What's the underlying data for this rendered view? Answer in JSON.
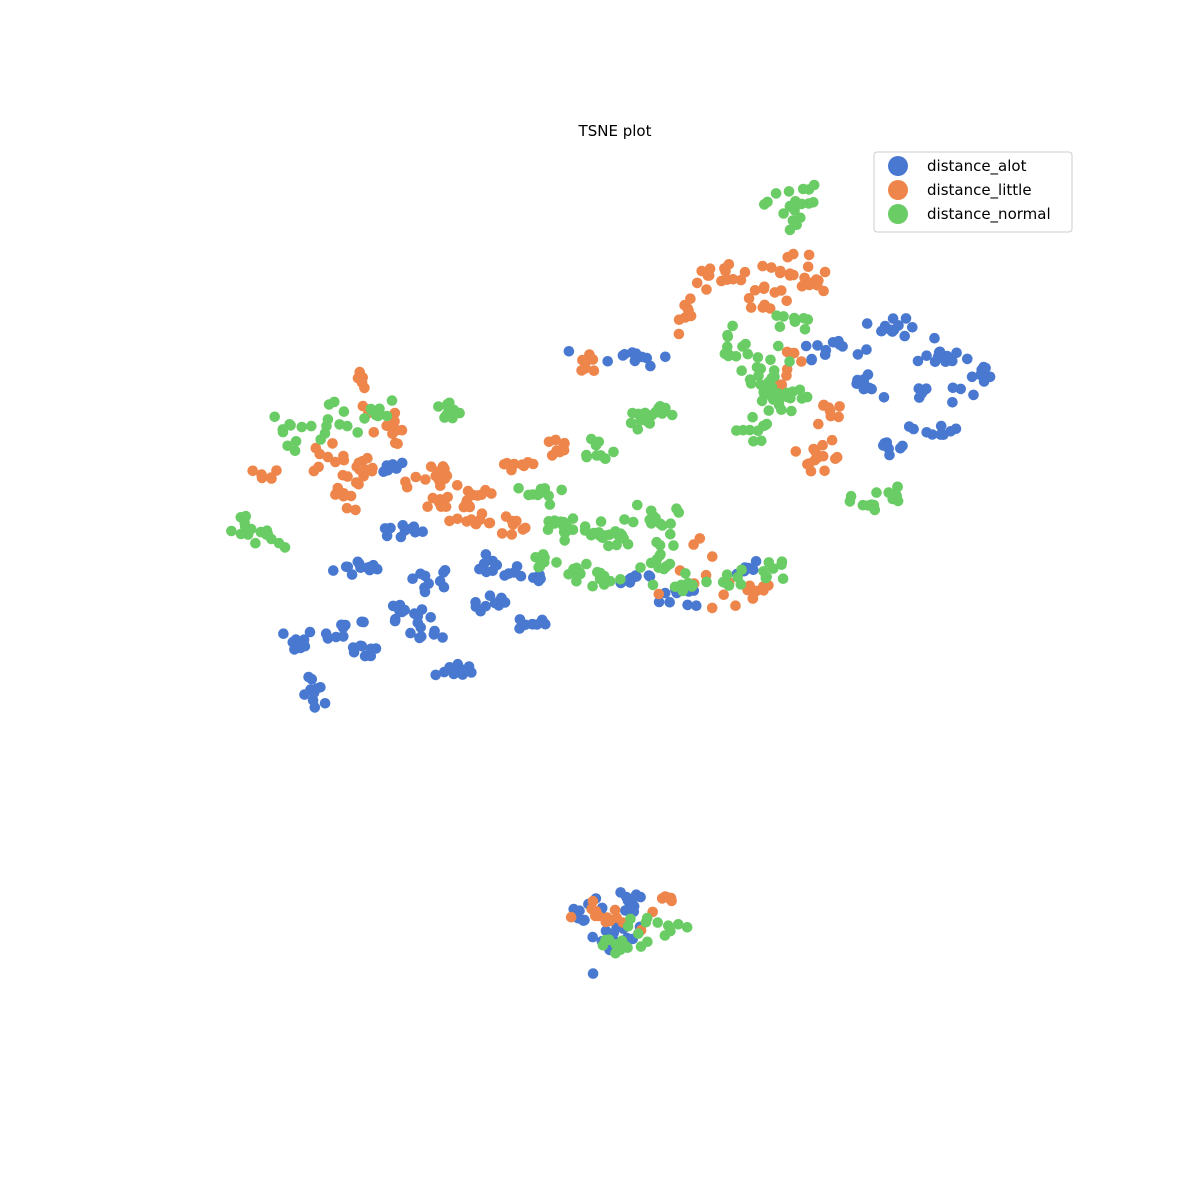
{
  "chart_data": {
    "type": "scatter",
    "title": "TSNE plot",
    "xlabel": "",
    "ylabel": "",
    "axes_visible": false,
    "grid": false,
    "legend_position": "top-right",
    "xlim": [
      -50,
      50
    ],
    "ylim": [
      -50,
      50
    ],
    "series": [
      {
        "name": "distance_alot",
        "color": "#4878d0",
        "clusters": [
          {
            "cx": -27,
            "cy": 4,
            "n": 12,
            "sx": 1.6,
            "sy": 0.5
          },
          {
            "cx": -20,
            "cy": 3,
            "n": 10,
            "sx": 1.4,
            "sy": 0.6
          },
          {
            "cx": -13,
            "cy": 0,
            "n": 10,
            "sx": 1.2,
            "sy": 0.5
          },
          {
            "cx": -20,
            "cy": -3,
            "n": 8,
            "sx": 1.0,
            "sy": 0.7
          },
          {
            "cx": -29,
            "cy": -3,
            "n": 10,
            "sx": 1.2,
            "sy": 0.8
          },
          {
            "cx": -34,
            "cy": -4,
            "n": 8,
            "sx": 0.8,
            "sy": 0.7
          },
          {
            "cx": -23,
            "cy": 8,
            "n": 10,
            "sx": 1.6,
            "sy": 0.4
          },
          {
            "cx": -13,
            "cy": 4,
            "n": 10,
            "sx": 1.4,
            "sy": 0.6
          },
          {
            "cx": -23,
            "cy": -1,
            "n": 12,
            "sx": 1.5,
            "sy": 0.6
          },
          {
            "cx": -32,
            "cy": -10,
            "n": 10,
            "sx": 0.8,
            "sy": 1.0
          },
          {
            "cx": -17,
            "cy": -7,
            "n": 10,
            "sx": 1.2,
            "sy": 0.4
          },
          {
            "cx": -9,
            "cy": -2,
            "n": 8,
            "sx": 0.8,
            "sy": 0.4
          },
          {
            "cx": -9,
            "cy": 3,
            "n": 8,
            "sx": 0.8,
            "sy": 0.5
          },
          {
            "cx": -25,
            "cy": 15,
            "n": 8,
            "sx": 1.4,
            "sy": 0.3
          },
          {
            "cx": -27,
            "cy": -5,
            "n": 8,
            "sx": 1.0,
            "sy": 0.5
          },
          {
            "cx": 2,
            "cy": 3,
            "n": 10,
            "sx": 1.5,
            "sy": 0.5
          },
          {
            "cx": 8,
            "cy": 1,
            "n": 10,
            "sx": 1.5,
            "sy": 0.8
          },
          {
            "cx": 14,
            "cy": 4,
            "n": 8,
            "sx": 0.8,
            "sy": 0.5
          },
          {
            "cx": 2,
            "cy": 27,
            "n": 12,
            "sx": 2.0,
            "sy": 0.5
          },
          {
            "cx": 23,
            "cy": 28,
            "n": 12,
            "sx": 1.8,
            "sy": 0.6
          },
          {
            "cx": 30,
            "cy": 30,
            "n": 12,
            "sx": 1.6,
            "sy": 0.5
          },
          {
            "cx": 35,
            "cy": 27,
            "n": 12,
            "sx": 1.6,
            "sy": 0.6
          },
          {
            "cx": 33,
            "cy": 23,
            "n": 10,
            "sx": 2.0,
            "sy": 0.6
          },
          {
            "cx": 27,
            "cy": 24,
            "n": 8,
            "sx": 1.2,
            "sy": 0.6
          },
          {
            "cx": 30,
            "cy": 18,
            "n": 8,
            "sx": 0.8,
            "sy": 0.8
          },
          {
            "cx": 35,
            "cy": 19,
            "n": 8,
            "sx": 1.0,
            "sy": 0.5
          },
          {
            "cx": 40,
            "cy": 25,
            "n": 8,
            "sx": 0.8,
            "sy": 0.5
          },
          {
            "cx": -0.5,
            "cy": -36,
            "n": 14,
            "sx": 1.8,
            "sy": 1.2
          },
          {
            "cx": 2,
            "cy": -32,
            "n": 10,
            "sx": 0.8,
            "sy": 0.6
          },
          {
            "cx": -3,
            "cy": -33,
            "n": 8,
            "sx": 1.0,
            "sy": 0.5
          }
        ]
      },
      {
        "name": "distance_little",
        "color": "#ee854a",
        "clusters": [
          {
            "cx": -27,
            "cy": 23,
            "n": 8,
            "sx": 0.7,
            "sy": 1.2
          },
          {
            "cx": -24,
            "cy": 19,
            "n": 10,
            "sx": 1.2,
            "sy": 0.8
          },
          {
            "cx": -31,
            "cy": 16,
            "n": 10,
            "sx": 1.0,
            "sy": 0.8
          },
          {
            "cx": -27,
            "cy": 14,
            "n": 12,
            "sx": 1.4,
            "sy": 1.0
          },
          {
            "cx": -20,
            "cy": 14,
            "n": 12,
            "sx": 1.6,
            "sy": 1.0
          },
          {
            "cx": -15,
            "cy": 12,
            "n": 10,
            "sx": 1.4,
            "sy": 1.2
          },
          {
            "cx": -11,
            "cy": 9,
            "n": 10,
            "sx": 1.2,
            "sy": 1.2
          },
          {
            "cx": -18,
            "cy": 11,
            "n": 10,
            "sx": 1.8,
            "sy": 0.6
          },
          {
            "cx": -29,
            "cy": 12,
            "n": 10,
            "sx": 1.2,
            "sy": 1.0
          },
          {
            "cx": -38,
            "cy": 14,
            "n": 6,
            "sx": 1.0,
            "sy": 0.4
          },
          {
            "cx": -11,
            "cy": 15,
            "n": 8,
            "sx": 1.4,
            "sy": 0.4
          },
          {
            "cx": -6,
            "cy": 17,
            "n": 8,
            "sx": 0.8,
            "sy": 0.5
          },
          {
            "cx": -16,
            "cy": 9,
            "n": 8,
            "sx": 1.2,
            "sy": 0.6
          },
          {
            "cx": 10,
            "cy": 3,
            "n": 12,
            "sx": 2.0,
            "sy": 2.0
          },
          {
            "cx": 15,
            "cy": 1,
            "n": 8,
            "sx": 1.0,
            "sy": 0.8
          },
          {
            "cx": -3,
            "cy": 26,
            "n": 8,
            "sx": 0.8,
            "sy": 0.5
          },
          {
            "cx": 8,
            "cy": 32,
            "n": 8,
            "sx": 0.5,
            "sy": 1.0
          },
          {
            "cx": 12,
            "cy": 36,
            "n": 14,
            "sx": 2.0,
            "sy": 1.0
          },
          {
            "cx": 16,
            "cy": 34,
            "n": 14,
            "sx": 1.6,
            "sy": 1.2
          },
          {
            "cx": 19,
            "cy": 37,
            "n": 10,
            "sx": 1.4,
            "sy": 0.8
          },
          {
            "cx": 22,
            "cy": 35,
            "n": 8,
            "sx": 1.0,
            "sy": 0.5
          },
          {
            "cx": 19,
            "cy": 26,
            "n": 8,
            "sx": 0.8,
            "sy": 1.0
          },
          {
            "cx": 23,
            "cy": 21,
            "n": 8,
            "sx": 0.8,
            "sy": 1.0
          },
          {
            "cx": 21,
            "cy": 16,
            "n": 8,
            "sx": 1.2,
            "sy": 0.6
          },
          {
            "cx": 23,
            "cy": 17,
            "n": 6,
            "sx": 0.8,
            "sy": 0.6
          },
          {
            "cx": -1,
            "cy": -34,
            "n": 14,
            "sx": 1.6,
            "sy": 0.8
          },
          {
            "cx": 5,
            "cy": -32,
            "n": 6,
            "sx": 0.8,
            "sy": 0.3
          }
        ]
      },
      {
        "name": "distance_normal",
        "color": "#6acc64",
        "clusters": [
          {
            "cx": -30,
            "cy": 20,
            "n": 10,
            "sx": 1.4,
            "sy": 1.2
          },
          {
            "cx": -35,
            "cy": 19,
            "n": 10,
            "sx": 1.0,
            "sy": 1.0
          },
          {
            "cx": -26,
            "cy": 21,
            "n": 8,
            "sx": 1.0,
            "sy": 0.6
          },
          {
            "cx": -18,
            "cy": 21,
            "n": 10,
            "sx": 1.0,
            "sy": 0.6
          },
          {
            "cx": -40,
            "cy": 8,
            "n": 8,
            "sx": 0.6,
            "sy": 1.0
          },
          {
            "cx": -37,
            "cy": 7,
            "n": 8,
            "sx": 0.8,
            "sy": 0.8
          },
          {
            "cx": -8,
            "cy": 12,
            "n": 10,
            "sx": 1.4,
            "sy": 0.6
          },
          {
            "cx": -5,
            "cy": 8,
            "n": 10,
            "sx": 1.4,
            "sy": 1.0
          },
          {
            "cx": -2,
            "cy": 8,
            "n": 10,
            "sx": 1.2,
            "sy": 0.8
          },
          {
            "cx": 1,
            "cy": 7,
            "n": 8,
            "sx": 1.0,
            "sy": 0.6
          },
          {
            "cx": -8,
            "cy": 5,
            "n": 8,
            "sx": 0.8,
            "sy": 0.6
          },
          {
            "cx": -1,
            "cy": 3,
            "n": 8,
            "sx": 1.0,
            "sy": 0.6
          },
          {
            "cx": -4,
            "cy": 4,
            "n": 8,
            "sx": 0.8,
            "sy": 0.5
          },
          {
            "cx": -6,
            "cy": 9,
            "n": 8,
            "sx": 1.0,
            "sy": 0.5
          },
          {
            "cx": 5,
            "cy": 4,
            "n": 10,
            "sx": 1.2,
            "sy": 0.8
          },
          {
            "cx": 7,
            "cy": 2,
            "n": 8,
            "sx": 1.0,
            "sy": 0.8
          },
          {
            "cx": 12,
            "cy": 3,
            "n": 8,
            "sx": 1.0,
            "sy": 0.8
          },
          {
            "cx": 17,
            "cy": 4,
            "n": 8,
            "sx": 1.0,
            "sy": 0.8
          },
          {
            "cx": 4,
            "cy": 10,
            "n": 10,
            "sx": 1.2,
            "sy": 0.6
          },
          {
            "cx": 6,
            "cy": 8,
            "n": 8,
            "sx": 0.8,
            "sy": 0.8
          },
          {
            "cx": -2,
            "cy": 17,
            "n": 10,
            "sx": 1.0,
            "sy": 0.8
          },
          {
            "cx": 2,
            "cy": 20,
            "n": 10,
            "sx": 1.2,
            "sy": 0.8
          },
          {
            "cx": 5,
            "cy": 21,
            "n": 8,
            "sx": 1.0,
            "sy": 0.6
          },
          {
            "cx": 12,
            "cy": 28,
            "n": 10,
            "sx": 1.0,
            "sy": 1.0
          },
          {
            "cx": 15,
            "cy": 26,
            "n": 12,
            "sx": 1.6,
            "sy": 1.2
          },
          {
            "cx": 18,
            "cy": 23,
            "n": 8,
            "sx": 1.2,
            "sy": 0.8
          },
          {
            "cx": 15,
            "cy": 24,
            "n": 8,
            "sx": 1.0,
            "sy": 0.6
          },
          {
            "cx": 18,
            "cy": 22,
            "n": 10,
            "sx": 1.2,
            "sy": 0.6
          },
          {
            "cx": 15,
            "cy": 19,
            "n": 10,
            "sx": 1.0,
            "sy": 0.8
          },
          {
            "cx": 19,
            "cy": 31,
            "n": 8,
            "sx": 1.0,
            "sy": 0.8
          },
          {
            "cx": 18,
            "cy": 43,
            "n": 10,
            "sx": 1.0,
            "sy": 1.4
          },
          {
            "cx": 20,
            "cy": 44,
            "n": 10,
            "sx": 1.0,
            "sy": 1.2
          },
          {
            "cx": 27,
            "cy": 11,
            "n": 8,
            "sx": 0.8,
            "sy": 0.6
          },
          {
            "cx": 30,
            "cy": 12,
            "n": 8,
            "sx": 0.8,
            "sy": 0.8
          },
          {
            "cx": 1,
            "cy": -37,
            "n": 12,
            "sx": 1.8,
            "sy": 0.6
          },
          {
            "cx": 5,
            "cy": -35,
            "n": 10,
            "sx": 1.6,
            "sy": 0.6
          }
        ]
      }
    ]
  }
}
